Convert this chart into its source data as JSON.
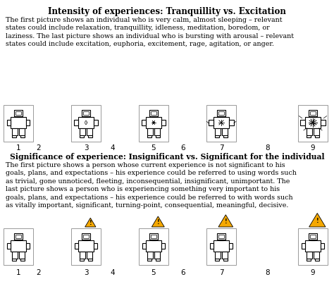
{
  "title": "Intensity of experiences: Tranquillity vs. Excitation",
  "title_fontsize": 8.5,
  "body_text_1": "The first picture shows an individual who is very calm, almost sleeping – relevant\nstates could include relaxation, tranquillity, idleness, meditation, boredom, or\nlaziness. The last picture shows an individual who is bursting with arousal – relevant\nstates could include excitation, euphoria, excitement, rage, agitation, or anger.",
  "section2_label": "Significance of experience: Insignificant vs. Significant for the individual",
  "body_text_2": "The first picture shows a person whose current experience is not significant to his\ngoals, plans, and expectations – his experience could be referred to using words such\nas trivial, gone unnoticed, fleeting, inconsequential, insignificant, unimportant. The\nlast picture shows a person who is experiencing something very important to his\ngoals, plans, and expectations – his experience could be referred to with words such\nas vitally important, significant, turning-point, consequential, meaningful, decisive.",
  "scale_labels": [
    "1",
    "2",
    "3",
    "4",
    "5",
    "6",
    "7",
    "8",
    "9"
  ],
  "bg_color": "#ffffff",
  "text_color": "#000000",
  "body_fontsize": 6.8,
  "section_fontsize": 7.8,
  "warning_color": "#F5A800"
}
